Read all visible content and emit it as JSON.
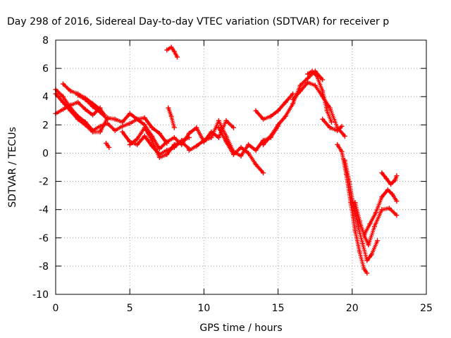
{
  "chart_data": {
    "type": "scatter",
    "title": "Day 298 of 2016, Sidereal Day-to-day VTEC variation (SDTVAR) for receiver p",
    "xlabel": "GPS time / hours",
    "ylabel": "SDTVAR / TECUs",
    "xlim": [
      0,
      25
    ],
    "ylim": [
      -10,
      8
    ],
    "xticks": [
      0,
      5,
      10,
      15,
      20,
      25
    ],
    "yticks": [
      -10,
      -8,
      -6,
      -4,
      -2,
      0,
      2,
      4,
      6,
      8
    ],
    "grid": true,
    "marker": "+",
    "color": "#ff0000",
    "series": [
      {
        "x": [
          0.0,
          0.5,
          1.0,
          1.5,
          2.0,
          2.5,
          3.0,
          3.5,
          4.0,
          4.5,
          5.0,
          5.5,
          6.0,
          6.5,
          7.0,
          7.5,
          8.0,
          8.5,
          9.0,
          9.5,
          10.0,
          10.5,
          11.0,
          11.5,
          12.0
        ],
        "y": [
          4.5,
          4.0,
          3.2,
          2.6,
          2.2,
          1.6,
          1.9,
          2.1,
          1.6,
          1.9,
          2.1,
          2.4,
          2.0,
          1.2,
          0.3,
          0.8,
          1.1,
          0.6,
          1.4,
          1.8,
          0.8,
          1.5,
          1.1,
          2.3,
          1.8
        ]
      },
      {
        "x": [
          0.0,
          0.5,
          1.0,
          1.5,
          2.0,
          2.5,
          3.0,
          3.5,
          4.0,
          4.5,
          5.0,
          5.5,
          6.0,
          6.5,
          7.0,
          7.5
        ],
        "y": [
          4.2,
          3.6,
          3.0,
          2.4,
          2.0,
          1.5,
          1.5,
          2.5,
          2.4,
          2.2,
          2.8,
          2.4,
          2.5,
          1.8,
          1.4,
          0.7
        ]
      },
      {
        "x": [
          0.0,
          0.5,
          1.0,
          1.5,
          2.0,
          2.5,
          3.0
        ],
        "y": [
          2.8,
          3.1,
          3.4,
          3.6,
          3.1,
          2.7,
          3.2
        ]
      },
      {
        "x": [
          0.5,
          1.0,
          1.5,
          2.0,
          2.5,
          3.0,
          3.3
        ],
        "y": [
          4.9,
          4.4,
          4.2,
          3.9,
          3.5,
          3.1,
          2.7
        ]
      },
      {
        "x": [
          1.5,
          2.0,
          2.5,
          3.0,
          3.5
        ],
        "y": [
          4.1,
          3.8,
          3.3,
          2.9,
          2.4
        ]
      },
      {
        "x": [
          3.4,
          3.6
        ],
        "y": [
          0.7,
          0.4
        ]
      },
      {
        "x": [
          4.5,
          5.0,
          5.5,
          6.0,
          6.5,
          7.0,
          7.5,
          8.0,
          8.5,
          9.0
        ],
        "y": [
          1.5,
          0.8,
          0.6,
          1.2,
          0.5,
          -0.1,
          0.2,
          0.4,
          0.9,
          1.1
        ]
      },
      {
        "x": [
          5.0,
          5.5,
          6.0,
          6.5,
          7.0,
          7.5,
          8.0,
          8.5,
          9.0
        ],
        "y": [
          0.6,
          1.0,
          1.8,
          0.9,
          -0.3,
          -0.1,
          0.6,
          0.8,
          0.3
        ]
      },
      {
        "x": [
          7.6,
          7.8,
          8.0
        ],
        "y": [
          3.2,
          2.6,
          1.8
        ]
      },
      {
        "x": [
          7.5,
          7.8,
          8.0,
          8.2
        ],
        "y": [
          7.3,
          7.5,
          7.2,
          6.8
        ]
      },
      {
        "x": [
          9.0,
          9.5,
          10.0,
          10.5,
          11.0,
          11.5,
          12.0,
          12.5,
          13.0,
          13.5,
          14.0,
          14.5,
          15.0
        ],
        "y": [
          0.2,
          0.5,
          0.9,
          1.1,
          2.3,
          1.2,
          0.1,
          -0.2,
          0.6,
          0.2,
          0.9,
          1.1,
          1.9
        ]
      },
      {
        "x": [
          11.0,
          11.5,
          12.0,
          12.5,
          13.0,
          13.5,
          14.0
        ],
        "y": [
          1.8,
          0.8,
          -0.1,
          0.4,
          0.0,
          -0.8,
          -1.4
        ]
      },
      {
        "x": [
          13.5,
          14.0,
          14.5,
          15.0,
          15.5,
          16.0
        ],
        "y": [
          3.0,
          2.4,
          2.6,
          3.0,
          3.6,
          4.2
        ]
      },
      {
        "x": [
          14.0,
          14.5,
          15.0,
          15.5,
          16.0,
          16.5,
          17.0,
          17.5,
          18.0
        ],
        "y": [
          0.6,
          1.2,
          2.0,
          2.6,
          3.5,
          4.8,
          5.3,
          5.8,
          5.2
        ]
      },
      {
        "x": [
          16.0,
          16.5,
          17.0,
          17.5,
          18.0,
          18.5,
          19.0,
          19.5
        ],
        "y": [
          3.8,
          4.4,
          5.0,
          4.8,
          4.0,
          3.2,
          1.8,
          1.2
        ]
      },
      {
        "x": [
          17.0,
          17.3,
          17.6,
          18.0,
          18.3,
          18.6
        ],
        "y": [
          5.6,
          5.8,
          5.5,
          4.4,
          3.0,
          2.2
        ]
      },
      {
        "x": [
          18.0,
          18.5,
          19.0,
          19.3
        ],
        "y": [
          2.4,
          1.8,
          1.6,
          1.9
        ]
      },
      {
        "x": [
          19.0,
          19.3,
          19.6,
          19.9,
          20.2,
          20.5,
          20.8,
          21.0
        ],
        "y": [
          0.6,
          0.1,
          -1.5,
          -3.5,
          -5.5,
          -7.0,
          -8.2,
          -8.5
        ]
      },
      {
        "x": [
          19.5,
          19.8,
          20.1,
          20.4,
          20.7,
          21.0,
          21.3,
          21.7
        ],
        "y": [
          -0.5,
          -2.0,
          -3.8,
          -5.2,
          -6.4,
          -7.6,
          -7.2,
          -6.2
        ]
      },
      {
        "x": [
          20.2,
          20.5,
          20.8,
          21.1,
          21.5,
          22.0,
          22.5,
          23.0
        ],
        "y": [
          -3.5,
          -4.8,
          -5.8,
          -6.5,
          -5.2,
          -4.0,
          -3.9,
          -4.4
        ]
      },
      {
        "x": [
          20.8,
          21.2,
          21.6,
          22.0,
          22.4,
          22.7,
          23.0
        ],
        "y": [
          -5.8,
          -5.0,
          -4.2,
          -3.1,
          -2.6,
          -2.9,
          -3.4
        ]
      },
      {
        "x": [
          22.0,
          22.3,
          22.6,
          22.9,
          23.0
        ],
        "y": [
          -1.4,
          -1.8,
          -2.2,
          -1.9,
          -1.6
        ]
      }
    ]
  }
}
